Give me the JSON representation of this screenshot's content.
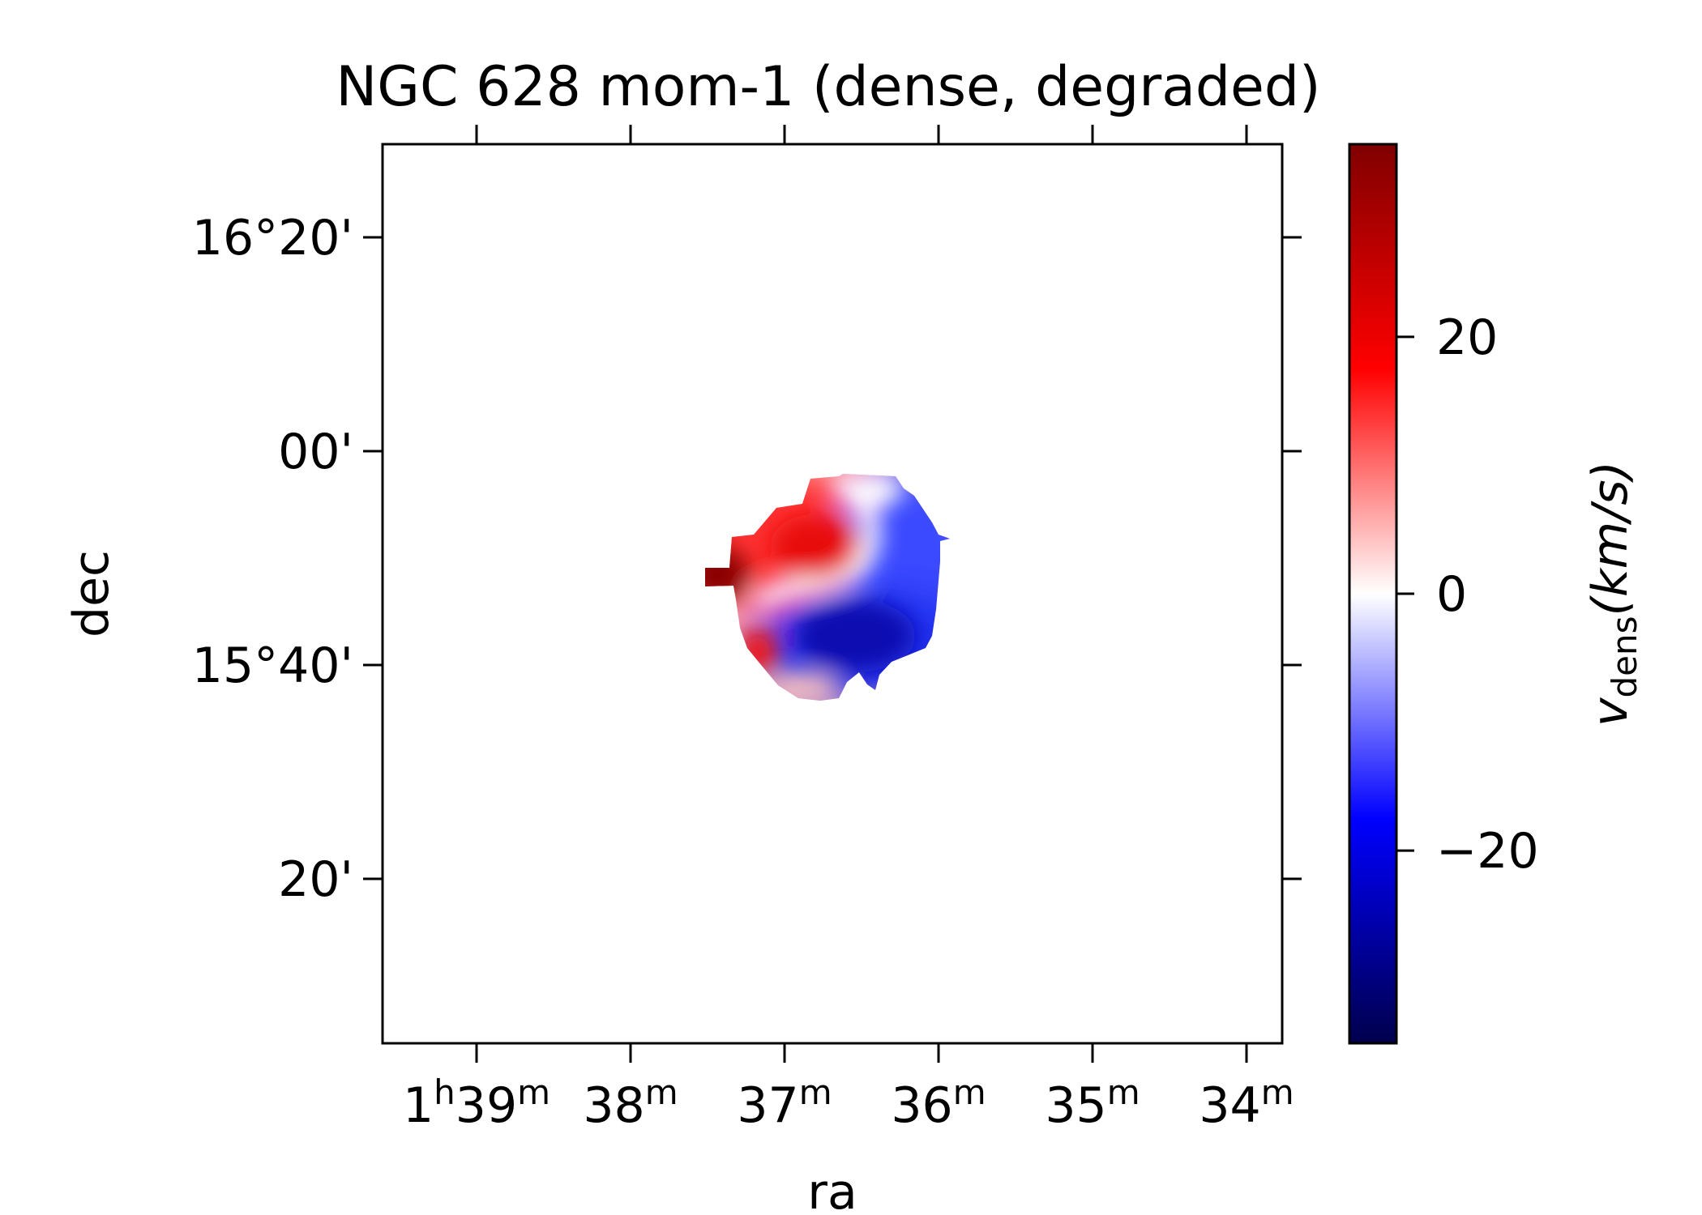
{
  "chart_data": {
    "type": "heatmap",
    "title": "NGC 628 mom-1 (dense, degraded)",
    "xlabel": "ra",
    "ylabel": "dec",
    "x_ticks": [
      {
        "h": "1",
        "hsup": "h",
        "m": "39",
        "msup": "m"
      },
      {
        "h": "",
        "hsup": "",
        "m": "38",
        "msup": "m"
      },
      {
        "h": "",
        "hsup": "",
        "m": "37",
        "msup": "m"
      },
      {
        "h": "",
        "hsup": "",
        "m": "36",
        "msup": "m"
      },
      {
        "h": "",
        "hsup": "",
        "m": "35",
        "msup": "m"
      },
      {
        "h": "",
        "hsup": "",
        "m": "34",
        "msup": "m"
      }
    ],
    "y_ticks": [
      "16°20'",
      "00'",
      "15°40'",
      "20'"
    ],
    "colorbar": {
      "label_main": "v",
      "label_sub": "dens",
      "label_unit": "(km/s)",
      "ticks": [
        "20",
        "0",
        "−20"
      ],
      "tick_values": [
        20,
        0,
        -20
      ],
      "range": [
        -35,
        35
      ],
      "colormap": "seismic",
      "colors": {
        "low": "#00004c",
        "mid": "#ffffff",
        "high": "#800000"
      }
    },
    "velocity_features": [
      {
        "kind": "approaching",
        "peak_kms": -31,
        "ra": "1h36m25s",
        "dec": "15°43.5'"
      },
      {
        "kind": "receding",
        "peak_kms": 24,
        "ra": "1h36m50s",
        "dec": "15°51.5'"
      },
      {
        "kind": "receding",
        "peak_kms": 33,
        "ra": "1h37m20s",
        "dec": "15°49.5'"
      },
      {
        "kind": "receding",
        "peak_kms": 22,
        "ra": "1h37m10s",
        "dec": "15°38'"
      }
    ]
  }
}
